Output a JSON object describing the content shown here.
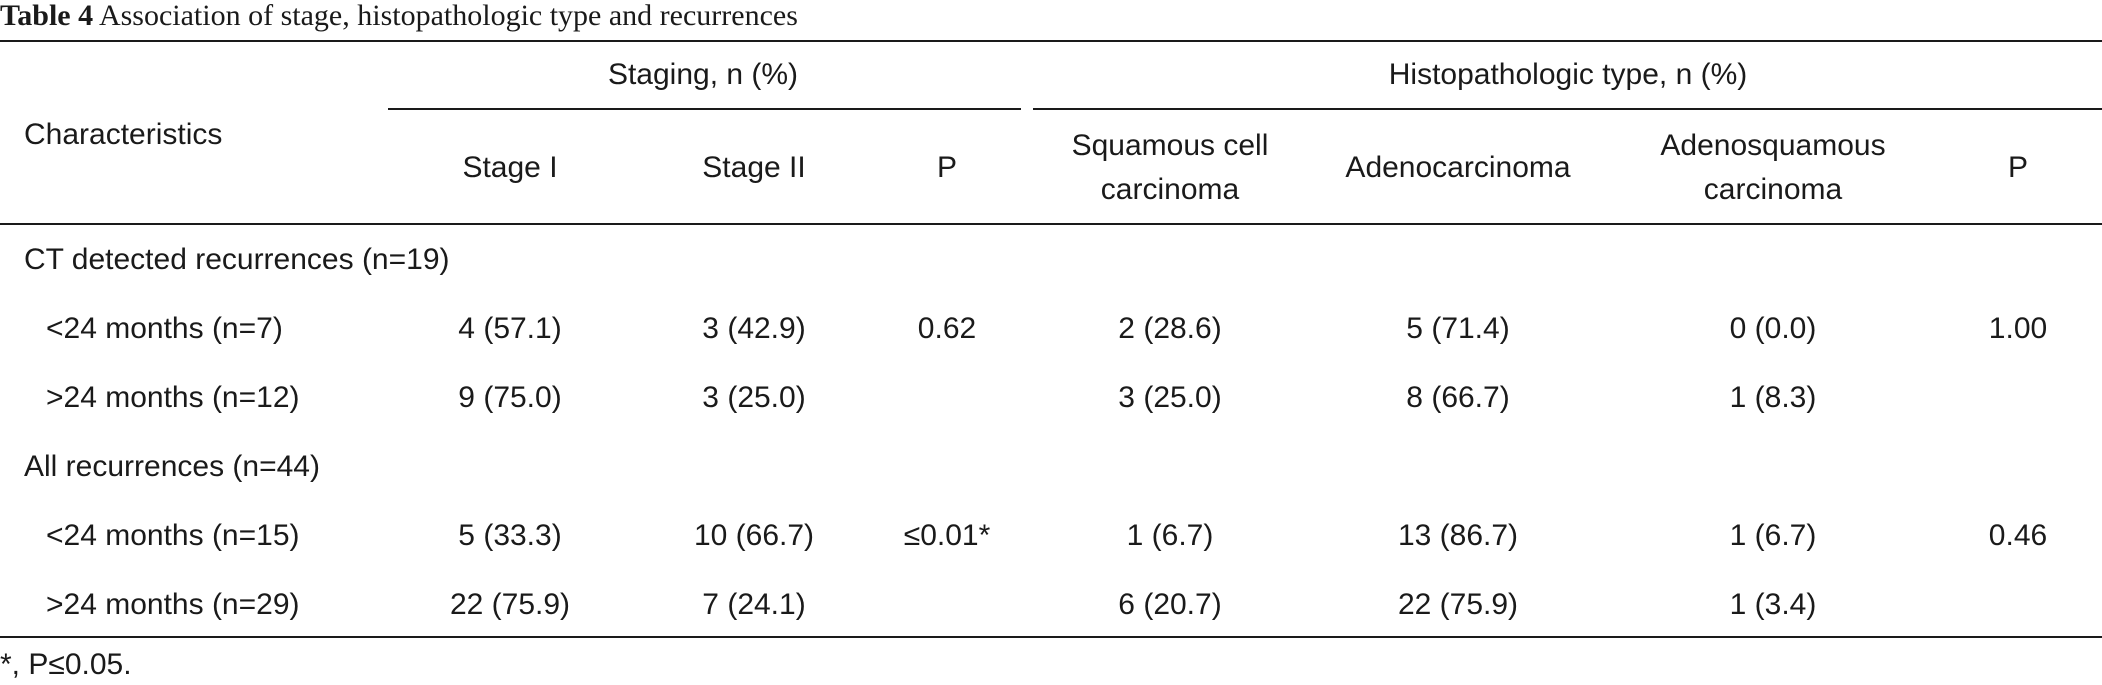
{
  "caption": {
    "label": "Table 4",
    "text": "Association of stage, histopathologic type and recurrences"
  },
  "headers": {
    "characteristics": "Characteristics",
    "staging_group": "Staging, n (%)",
    "histo_group": "Histopathologic type, n (%)",
    "stage1": "Stage I",
    "stage2": "Stage II",
    "p1": "P",
    "scc_line1": "Squamous cell",
    "scc_line2": "carcinoma",
    "adeno": "Adenocarcinoma",
    "adsq_line1": "Adenosquamous",
    "adsq_line2": "carcinoma",
    "p2": "P"
  },
  "sections": [
    {
      "label": "CT detected recurrences (n=19)",
      "rows": [
        {
          "label": "<24 months (n=7)",
          "stage1": "4 (57.1)",
          "stage2": "3 (42.9)",
          "p1": "0.62",
          "scc": "2 (28.6)",
          "adeno": "5 (71.4)",
          "adsq": "0 (0.0)",
          "p2": "1.00"
        },
        {
          "label": ">24 months (n=12)",
          "stage1": "9 (75.0)",
          "stage2": "3 (25.0)",
          "p1": "",
          "scc": "3 (25.0)",
          "adeno": "8 (66.7)",
          "adsq": "1 (8.3)",
          "p2": ""
        }
      ]
    },
    {
      "label": "All recurrences (n=44)",
      "rows": [
        {
          "label": "<24 months (n=15)",
          "stage1": "5 (33.3)",
          "stage2": "10 (66.7)",
          "p1": "≤0.01*",
          "scc": "1 (6.7)",
          "adeno": "13 (86.7)",
          "adsq": "1 (6.7)",
          "p2": "0.46"
        },
        {
          "label": ">24 months (n=29)",
          "stage1": "22 (75.9)",
          "stage2": "7 (24.1)",
          "p1": "",
          "scc": "6 (20.7)",
          "adeno": "22 (75.9)",
          "adsq": "1 (3.4)",
          "p2": ""
        }
      ]
    }
  ],
  "footnote": "*, P≤0.05."
}
